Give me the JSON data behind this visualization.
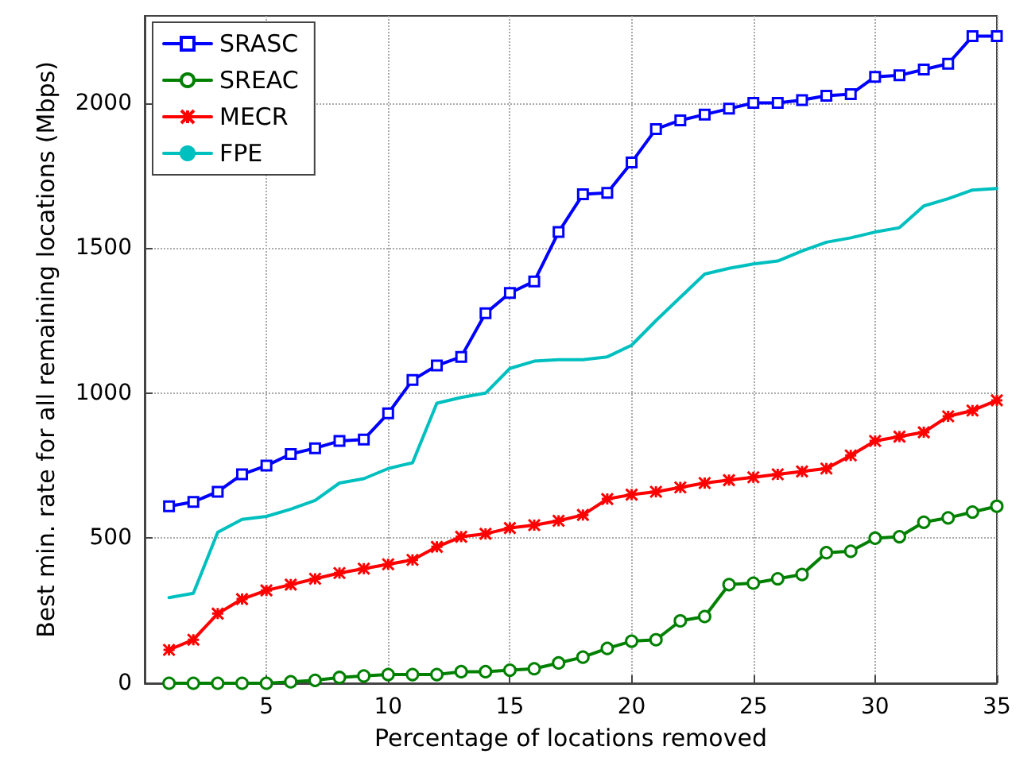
{
  "chart_data": {
    "type": "line",
    "xlabel": "Percentage of locations removed",
    "ylabel": "Best min. rate for all remaining locations (Mbps)",
    "x": [
      1,
      2,
      3,
      4,
      5,
      6,
      7,
      8,
      9,
      10,
      11,
      12,
      13,
      14,
      15,
      16,
      17,
      18,
      19,
      20,
      21,
      22,
      23,
      24,
      25,
      26,
      27,
      28,
      29,
      30,
      31,
      32,
      33,
      34,
      35
    ],
    "series": [
      {
        "name": "SRASC",
        "color": "#0000ff",
        "marker": "square",
        "values": [
          610,
          625,
          660,
          720,
          750,
          790,
          810,
          835,
          840,
          930,
          1045,
          1095,
          1125,
          1275,
          1345,
          1385,
          1555,
          1685,
          1690,
          1795,
          1910,
          1940,
          1960,
          1980,
          2000,
          2000,
          2010,
          2025,
          2030,
          2090,
          2095,
          2115,
          2135,
          2230,
          2230
        ]
      },
      {
        "name": "SREAC",
        "color": "#008000",
        "marker": "circle",
        "values": [
          0,
          0,
          0,
          0,
          0,
          5,
          10,
          20,
          25,
          30,
          30,
          30,
          40,
          40,
          45,
          50,
          70,
          90,
          120,
          145,
          150,
          215,
          230,
          340,
          345,
          360,
          375,
          450,
          455,
          500,
          505,
          555,
          570,
          590,
          610
        ]
      },
      {
        "name": "MECR",
        "color": "#ff0000",
        "marker": "cross",
        "values": [
          115,
          150,
          240,
          290,
          320,
          340,
          360,
          380,
          395,
          410,
          425,
          470,
          505,
          515,
          535,
          545,
          560,
          580,
          635,
          650,
          660,
          675,
          690,
          700,
          710,
          720,
          730,
          740,
          785,
          835,
          850,
          865,
          920,
          940,
          975
        ]
      },
      {
        "name": "FPE",
        "color": "#00bfbf",
        "marker": "none",
        "values": [
          295,
          310,
          520,
          565,
          575,
          600,
          630,
          690,
          705,
          740,
          760,
          965,
          985,
          1000,
          1085,
          1110,
          1115,
          1115,
          1125,
          1165,
          1250,
          1330,
          1410,
          1430,
          1445,
          1455,
          1490,
          1520,
          1535,
          1555,
          1570,
          1645,
          1670,
          1700,
          1705
        ]
      }
    ],
    "xlim": [
      0,
      35
    ],
    "xticks": [
      5,
      10,
      15,
      20,
      25,
      30,
      35
    ],
    "ylim": [
      0,
      2300
    ],
    "yticks": [
      0,
      500,
      1000,
      1500,
      2000
    ],
    "grid": true,
    "legend": "top left"
  }
}
